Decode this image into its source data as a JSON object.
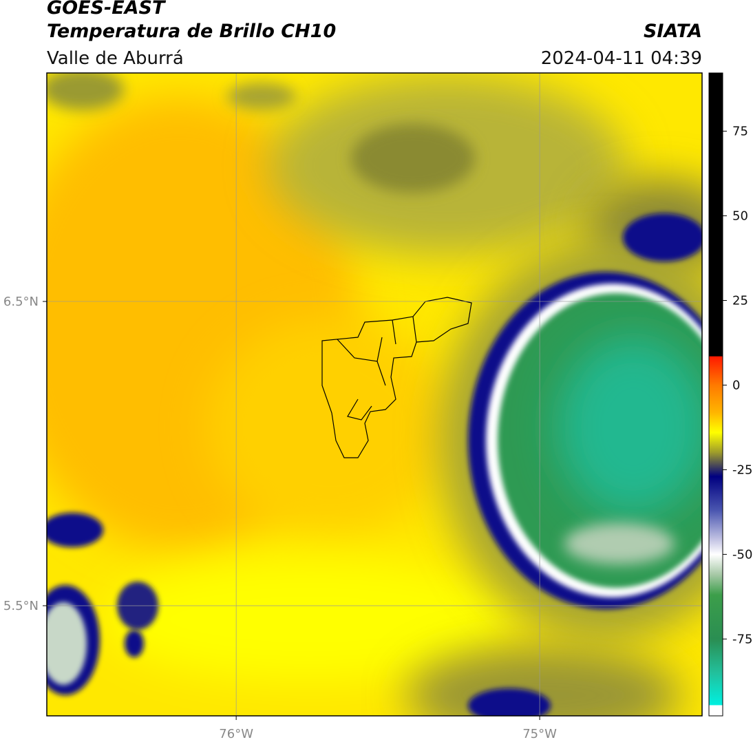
{
  "header": {
    "title": "GOES-EAST",
    "subtitle": "Temperatura de Brillo CH10",
    "region": "Valle de Aburrá",
    "source": "SIATA",
    "datetime": "2024-04-11 04:39"
  },
  "map": {
    "lonlim": [
      -76.624,
      -74.465
    ],
    "latlim": [
      5.138,
      7.251
    ],
    "lon_ticks": [
      {
        "value": -76,
        "label": "76°W"
      },
      {
        "value": -75,
        "label": "75°W"
      }
    ],
    "lat_ticks": [
      {
        "value": 6.5,
        "label": "6.5°N"
      },
      {
        "value": 5.5,
        "label": "5.5°N"
      }
    ]
  },
  "colorbar": {
    "lim": [
      -97.7,
      92.2
    ],
    "ticks": [
      75,
      50,
      25,
      0,
      -25,
      -50,
      -75
    ],
    "colors": [
      [
        92.2,
        "#000000"
      ],
      [
        8.6,
        "#000000"
      ],
      [
        8.4,
        "#ff1a00"
      ],
      [
        0,
        "#ff7a00"
      ],
      [
        -8,
        "#ffb400"
      ],
      [
        -14,
        "#ffff00"
      ],
      [
        -20,
        "#9c9a2c"
      ],
      [
        -27,
        "#000080"
      ],
      [
        -37,
        "#4a56b0"
      ],
      [
        -46,
        "#c8c8e6"
      ],
      [
        -50,
        "#ffffff"
      ],
      [
        -56,
        "#a6c8a6"
      ],
      [
        -62,
        "#3c9e4a"
      ],
      [
        -75,
        "#2a8e52"
      ],
      [
        -85,
        "#22c09c"
      ],
      [
        -94.5,
        "#00f0e0"
      ],
      [
        -94.6,
        "#ffffff"
      ],
      [
        -97.7,
        "#ffffff"
      ]
    ]
  }
}
